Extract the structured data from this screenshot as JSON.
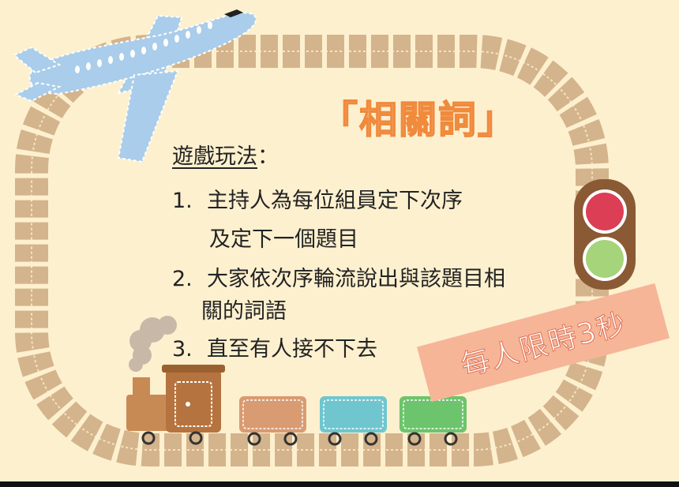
{
  "title": "「相關詞」",
  "rules": {
    "heading": "遊戲玩法",
    "colon": "：",
    "items": [
      {
        "num": "1.",
        "text": "主持人為每位組員定下次序",
        "cont": "及定下一個題目"
      },
      {
        "num": "2.",
        "text": "大家依次序輪流說出與該題目相",
        "cont": "關的詞語"
      },
      {
        "num": "3.",
        "text": "直至有人接不下去"
      }
    ]
  },
  "banner": "每人限時3秒",
  "colors": {
    "background": "#fdf0cf",
    "track": "#d4b48c",
    "title": "#f6a86a",
    "banner": "#f6b597",
    "plane": "#a9cdea",
    "traffic_red": "#dc3f55",
    "traffic_green": "#a6d47a",
    "car_tan": "#d99b71",
    "car_teal": "#6fc6cf",
    "car_green": "#6cc46c"
  },
  "icons": [
    "airplane-icon",
    "traffic-light-icon",
    "locomotive-icon",
    "train-car-icon",
    "railway-track-icon"
  ]
}
